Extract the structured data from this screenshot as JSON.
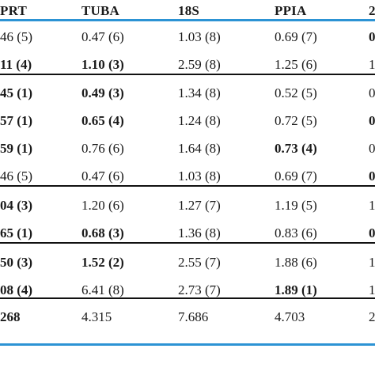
{
  "colors": {
    "accent_rule": "#2c93d4",
    "rule": "#111111",
    "text": "#1a1a1a"
  },
  "table": {
    "headers": [
      "PRT",
      "TUBA",
      "18S",
      "PPIA",
      "2"
    ],
    "rows": [
      {
        "cells": [
          {
            "t": "46 (5)",
            "b": false
          },
          {
            "t": "0.47 (6)",
            "b": false
          },
          {
            "t": "1.03 (8)",
            "b": false
          },
          {
            "t": "0.69 (7)",
            "b": false
          },
          {
            "t": "0",
            "b": true
          }
        ]
      },
      {
        "cells": [
          {
            "t": "11 (4)",
            "b": true
          },
          {
            "t": "1.10 (3)",
            "b": true
          },
          {
            "t": "2.59 (8)",
            "b": false
          },
          {
            "t": "1.25 (6)",
            "b": false
          },
          {
            "t": "1",
            "b": false
          }
        ]
      },
      {
        "cells": [
          {
            "t": "45 (1)",
            "b": true
          },
          {
            "t": "0.49 (3)",
            "b": true
          },
          {
            "t": "1.34 (8)",
            "b": false
          },
          {
            "t": "0.52 (5)",
            "b": false
          },
          {
            "t": "0",
            "b": false
          }
        ]
      },
      {
        "cells": [
          {
            "t": "57 (1)",
            "b": true
          },
          {
            "t": "0.65 (4)",
            "b": true
          },
          {
            "t": "1.24 (8)",
            "b": false
          },
          {
            "t": "0.72 (5)",
            "b": false
          },
          {
            "t": "0",
            "b": true
          }
        ]
      },
      {
        "cells": [
          {
            "t": "59 (1)",
            "b": true
          },
          {
            "t": "0.76 (6)",
            "b": false
          },
          {
            "t": "1.64 (8)",
            "b": false
          },
          {
            "t": "0.73 (4)",
            "b": true
          },
          {
            "t": "0",
            "b": false
          }
        ]
      },
      {
        "cells": [
          {
            "t": "46 (5)",
            "b": false
          },
          {
            "t": "0.47 (6)",
            "b": false
          },
          {
            "t": "1.03 (8)",
            "b": false
          },
          {
            "t": "0.69 (7)",
            "b": false
          },
          {
            "t": "0",
            "b": true
          }
        ]
      },
      {
        "cells": [
          {
            "t": "04 (3)",
            "b": true
          },
          {
            "t": "1.20 (6)",
            "b": false
          },
          {
            "t": "1.27 (7)",
            "b": false
          },
          {
            "t": "1.19 (5)",
            "b": false
          },
          {
            "t": "1",
            "b": false
          }
        ]
      },
      {
        "cells": [
          {
            "t": "65 (1)",
            "b": true
          },
          {
            "t": "0.68 (3)",
            "b": true
          },
          {
            "t": "1.36 (8)",
            "b": false
          },
          {
            "t": "0.83 (6)",
            "b": false
          },
          {
            "t": "0",
            "b": true
          }
        ]
      },
      {
        "cells": [
          {
            "t": "50 (3)",
            "b": true
          },
          {
            "t": "1.52 (2)",
            "b": true
          },
          {
            "t": "2.55 (7)",
            "b": false
          },
          {
            "t": "1.88 (6)",
            "b": false
          },
          {
            "t": "1",
            "b": false
          }
        ]
      },
      {
        "cells": [
          {
            "t": "08 (4)",
            "b": true
          },
          {
            "t": "6.41 (8)",
            "b": false
          },
          {
            "t": "2.73 (7)",
            "b": false
          },
          {
            "t": "1.89 (1)",
            "b": true
          },
          {
            "t": "1",
            "b": false
          }
        ]
      },
      {
        "cells": [
          {
            "t": "268",
            "b": true
          },
          {
            "t": "4.315",
            "b": false
          },
          {
            "t": "7.686",
            "b": false
          },
          {
            "t": "4.703",
            "b": false
          },
          {
            "t": "2",
            "b": false
          }
        ]
      }
    ]
  }
}
